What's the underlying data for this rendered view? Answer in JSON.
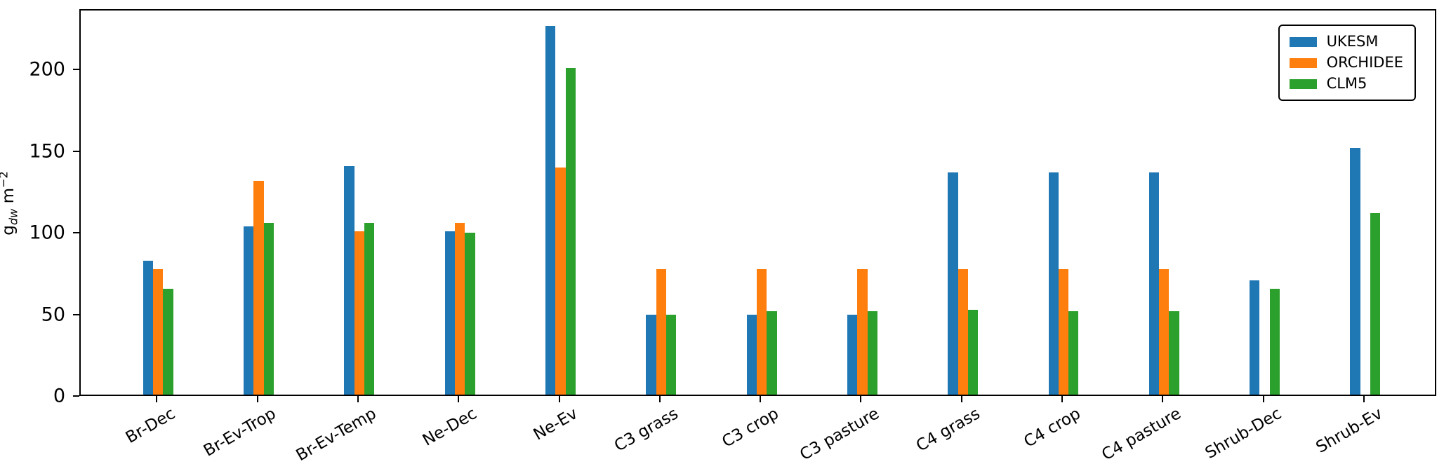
{
  "chart_data": {
    "type": "bar",
    "title": "",
    "categories": [
      "Br-Dec",
      "Br-Ev-Trop",
      "Br-Ev-Temp",
      "Ne-Dec",
      "Ne-Ev",
      "C3 grass",
      "C3 crop",
      "C3 pasture",
      "C4 grass",
      "C4 crop",
      "C4 pasture",
      "Shrub-Dec",
      "Shrub-Ev"
    ],
    "series": [
      {
        "name": "UKESM",
        "color": "#1f77b4",
        "values": [
          82,
          103,
          140,
          100,
          226,
          49,
          49,
          49,
          136,
          136,
          136,
          70,
          151
        ]
      },
      {
        "name": "ORCHIDEE",
        "color": "#ff7f0e",
        "values": [
          77,
          131,
          100,
          105,
          139,
          77,
          77,
          77,
          77,
          77,
          77,
          0,
          0
        ]
      },
      {
        "name": "CLM5",
        "color": "#2ca02c",
        "values": [
          65,
          105,
          105,
          99,
          200,
          49,
          51,
          51,
          52,
          51,
          51,
          65,
          111
        ]
      }
    ],
    "xlabel": "",
    "ylabel": "g_dw m^-2",
    "ylabel_parts": {
      "base": "g",
      "sub": "dw",
      "unit": " m",
      "sup": "−2"
    },
    "yticks": [
      0,
      50,
      100,
      150,
      200
    ],
    "ylim": [
      0,
      237
    ],
    "grid": false,
    "legend_position": "upper right",
    "axis_color": "#000000",
    "background_color": "#ffffff"
  }
}
